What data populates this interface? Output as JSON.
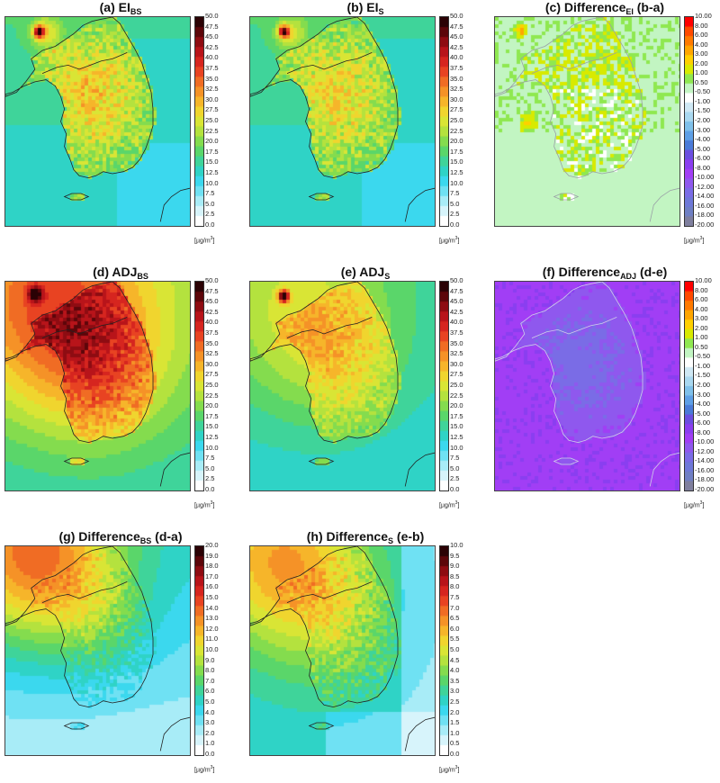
{
  "panels": [
    {
      "id": "a",
      "title_main": "(a) EI",
      "title_sub": "BS",
      "title_tail": "",
      "scale": "pm",
      "ticks": [
        "50.0",
        "47.5",
        "45.0",
        "42.5",
        "40.0",
        "37.5",
        "35.0",
        "32.5",
        "30.0",
        "27.5",
        "25.0",
        "22.5",
        "20.0",
        "17.5",
        "15.0",
        "12.5",
        "10.0",
        "7.5",
        "5.0",
        "2.5",
        "0.0"
      ],
      "field": "ei_bs",
      "unit": "µg/m",
      "unit_exp": "3"
    },
    {
      "id": "b",
      "title_main": "(b) EI",
      "title_sub": "S",
      "title_tail": "",
      "scale": "pm",
      "ticks": [
        "50.0",
        "47.5",
        "45.0",
        "42.5",
        "40.0",
        "37.5",
        "35.0",
        "32.5",
        "30.0",
        "27.5",
        "25.0",
        "22.5",
        "20.0",
        "17.5",
        "15.0",
        "12.5",
        "10.0",
        "7.5",
        "5.0",
        "2.5",
        "0.0"
      ],
      "field": "ei_s",
      "unit": "µg/m",
      "unit_exp": "3"
    },
    {
      "id": "c",
      "title_main": "(c) Difference",
      "title_sub": "EI",
      "title_tail": " (b-a)",
      "scale": "diff",
      "ticks": [
        "10.00",
        "8.00",
        "6.00",
        "4.00",
        "3.00",
        "2.00",
        "1.00",
        "0.50",
        "-0.50",
        "-1.00",
        "-1.50",
        "-2.00",
        "-3.00",
        "-4.00",
        "-5.00",
        "-6.00",
        "-8.00",
        "-10.00",
        "-12.00",
        "-14.00",
        "-16.00",
        "-18.00",
        "-20.00"
      ],
      "field": "diff_ei",
      "unit": "µg/m",
      "unit_exp": "3"
    },
    {
      "id": "d",
      "title_main": "(d) ADJ",
      "title_sub": "BS",
      "title_tail": "",
      "scale": "pm",
      "ticks": [
        "50.0",
        "47.5",
        "45.0",
        "42.5",
        "40.0",
        "37.5",
        "35.0",
        "32.5",
        "30.0",
        "27.5",
        "25.0",
        "22.5",
        "20.0",
        "17.5",
        "15.0",
        "12.5",
        "10.0",
        "7.5",
        "5.0",
        "2.5",
        "0.0"
      ],
      "field": "adj_bs",
      "unit": "µg/m",
      "unit_exp": "3"
    },
    {
      "id": "e",
      "title_main": "(e) ADJ",
      "title_sub": "S",
      "title_tail": "",
      "scale": "pm",
      "ticks": [
        "50.0",
        "47.5",
        "45.0",
        "42.5",
        "40.0",
        "37.5",
        "35.0",
        "32.5",
        "30.0",
        "27.5",
        "25.0",
        "22.5",
        "20.0",
        "17.5",
        "15.0",
        "12.5",
        "10.0",
        "7.5",
        "5.0",
        "2.5",
        "0.0"
      ],
      "field": "adj_s",
      "unit": "µg/m",
      "unit_exp": "3"
    },
    {
      "id": "f",
      "title_main": "(f) Difference",
      "title_sub": "ADJ",
      "title_tail": " (d-e)",
      "scale": "diff",
      "ticks": [
        "10.00",
        "8.00",
        "6.00",
        "4.00",
        "3.00",
        "2.00",
        "1.00",
        "0.50",
        "-0.50",
        "-1.00",
        "-1.50",
        "-2.00",
        "-3.00",
        "-4.00",
        "-5.00",
        "-6.00",
        "-8.00",
        "-10.00",
        "-12.00",
        "-14.00",
        "-16.00",
        "-18.00",
        "-20.00"
      ],
      "field": "diff_adj",
      "unit": "µg/m",
      "unit_exp": "3"
    },
    {
      "id": "g",
      "title_main": "(g) Difference",
      "title_sub": "BS",
      "title_tail": " (d-a)",
      "scale": "pos20",
      "ticks": [
        "20.0",
        "19.0",
        "18.0",
        "17.0",
        "16.0",
        "15.0",
        "14.0",
        "13.0",
        "12.0",
        "11.0",
        "10.0",
        "9.0",
        "8.0",
        "7.0",
        "6.0",
        "5.0",
        "4.0",
        "3.0",
        "2.0",
        "1.0",
        "0.0"
      ],
      "field": "diff_bs",
      "unit": "µg/m",
      "unit_exp": "3"
    },
    {
      "id": "h",
      "title_main": "(h) Difference",
      "title_sub": "S",
      "title_tail": " (e-b)",
      "scale": "pos10",
      "ticks": [
        "10.0",
        "9.5",
        "9.0",
        "8.5",
        "8.0",
        "7.5",
        "7.0",
        "6.5",
        "6.0",
        "5.5",
        "5.0",
        "4.5",
        "4.0",
        "3.5",
        "3.0",
        "2.5",
        "2.0",
        "1.5",
        "1.0",
        "0.5",
        "0.0"
      ],
      "field": "diff_s",
      "unit": "µg/m",
      "unit_exp": "3"
    }
  ],
  "colors": {
    "pm_ramp": [
      "#ffffff",
      "#d7f4fb",
      "#a8ecf7",
      "#6fe1f3",
      "#3bd8ee",
      "#2fd3c6",
      "#3fd49a",
      "#5ad66a",
      "#84dc4e",
      "#b4e23e",
      "#d9e535",
      "#f0d52e",
      "#f6b52a",
      "#f59227",
      "#f06c24",
      "#e84322",
      "#d6251f",
      "#b8141a",
      "#8e0c12",
      "#5c060a",
      "#2b0205"
    ],
    "diff_ramp": [
      "#ff0000",
      "#ff4a00",
      "#ff7a00",
      "#ffa600",
      "#ffd000",
      "#d8ea00",
      "#8fe850",
      "#c2f5c2",
      "#ffffff",
      "#cfe8f4",
      "#a9d8f0",
      "#7fc0ea",
      "#5e9fe6",
      "#4a7ad8",
      "#6b4ee0",
      "#8a3ef0",
      "#a13ef5",
      "#8f58ee",
      "#7a6ce6",
      "#6e78d8",
      "#6f7fc4",
      "#7f7f9e"
    ]
  }
}
